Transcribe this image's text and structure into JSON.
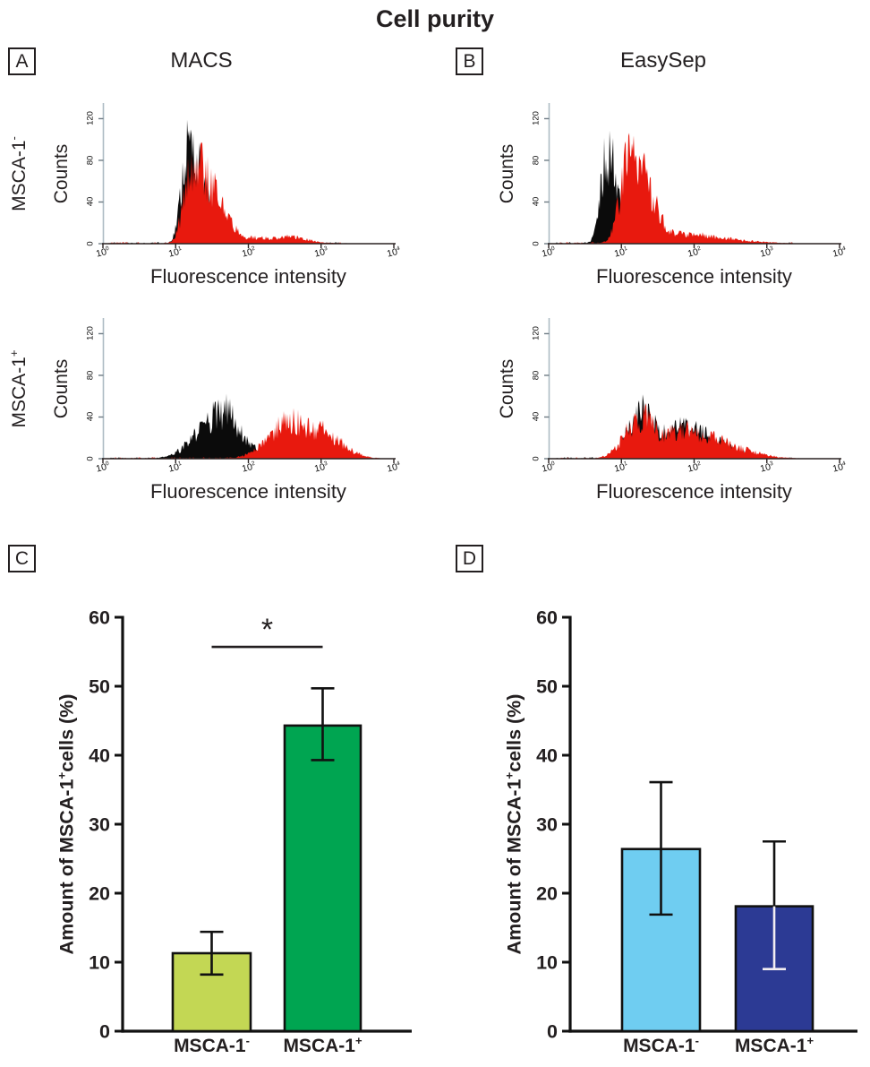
{
  "title": "Cell purity",
  "panels": {
    "A": {
      "letter": "A",
      "method": "MACS"
    },
    "B": {
      "letter": "B",
      "method": "EasySep"
    },
    "C": {
      "letter": "C"
    },
    "D": {
      "letter": "D"
    }
  },
  "row_labels": [
    {
      "text": "MSCA-1",
      "sign": "-"
    },
    {
      "text": "MSCA-1",
      "sign": "+"
    }
  ],
  "colors": {
    "hist_black": "#0b0b0b",
    "hist_red": "#e8190e",
    "hist_yaxis": "#aebcc4",
    "hist_xaxis": "#2a2222",
    "bar_yellow_green": "#c3d754",
    "bar_green": "#00a551",
    "bar_light_blue": "#6fcdf1",
    "bar_dark_blue": "#2c3a94",
    "axis_black": "#111111"
  },
  "chart_data": [
    {
      "type": "area",
      "panel": "A",
      "row": "MSCA-1-",
      "title": "MACS / MSCA-1- fraction",
      "xlabel": "Fluorescence intensity",
      "ylabel": "Counts",
      "x_scale": "log10",
      "xtick_exponents": [
        0,
        1,
        2,
        3,
        4
      ],
      "ylim": [
        0,
        135
      ],
      "yticks": [
        0,
        40,
        80,
        120
      ],
      "series": [
        {
          "name": "black",
          "components": [
            {
              "mu": 1.17,
              "sl": 0.09,
              "sr": 0.22,
              "h": 93
            }
          ]
        },
        {
          "name": "red",
          "components": [
            {
              "mu": 1.23,
              "sl": 0.11,
              "sr": 0.33,
              "h": 77
            },
            {
              "mu": 2.0,
              "sl": 0.45,
              "sr": 0.55,
              "h": 6
            },
            {
              "mu": 2.55,
              "sl": 0.15,
              "sr": 0.25,
              "h": 7
            }
          ]
        }
      ]
    },
    {
      "type": "area",
      "panel": "B",
      "row": "MSCA-1-",
      "title": "EasySep / MSCA-1- fraction",
      "xlabel": "Fluorescence intensity",
      "ylabel": "Counts",
      "x_scale": "log10",
      "xtick_exponents": [
        0,
        1,
        2,
        3,
        4
      ],
      "ylim": [
        0,
        135
      ],
      "yticks": [
        0,
        40,
        80,
        120
      ],
      "series": [
        {
          "name": "black",
          "components": [
            {
              "mu": 0.81,
              "sl": 0.09,
              "sr": 0.15,
              "h": 88
            }
          ]
        },
        {
          "name": "red",
          "components": [
            {
              "mu": 1.12,
              "sl": 0.13,
              "sr": 0.28,
              "h": 84
            },
            {
              "mu": 1.75,
              "sl": 0.3,
              "sr": 0.6,
              "h": 10
            },
            {
              "mu": 2.3,
              "sl": 0.3,
              "sr": 0.5,
              "h": 4
            }
          ]
        }
      ]
    },
    {
      "type": "area",
      "panel": "A",
      "row": "MSCA-1+",
      "title": "MACS / MSCA-1+ fraction",
      "xlabel": "Fluorescence intensity",
      "ylabel": "Counts",
      "x_scale": "log10",
      "xtick_exponents": [
        0,
        1,
        2,
        3,
        4
      ],
      "ylim": [
        0,
        135
      ],
      "yticks": [
        0,
        40,
        80,
        120
      ],
      "series": [
        {
          "name": "black",
          "components": [
            {
              "mu": 1.6,
              "sl": 0.3,
              "sr": 0.3,
              "h": 42
            },
            {
              "mu": 1.72,
              "sl": 0.14,
              "sr": 0.14,
              "h": 46
            }
          ]
        },
        {
          "name": "red",
          "components": [
            {
              "mu": 2.6,
              "sl": 0.3,
              "sr": 0.33,
              "h": 36
            },
            {
              "mu": 2.95,
              "sl": 0.15,
              "sr": 0.3,
              "h": 28
            }
          ]
        }
      ]
    },
    {
      "type": "area",
      "panel": "B",
      "row": "MSCA-1+",
      "title": "EasySep / MSCA-1+ fraction",
      "xlabel": "Fluorescence intensity",
      "ylabel": "Counts",
      "x_scale": "log10",
      "xtick_exponents": [
        0,
        1,
        2,
        3,
        4
      ],
      "ylim": [
        0,
        135
      ],
      "yticks": [
        0,
        40,
        80,
        120
      ],
      "series": [
        {
          "name": "black",
          "components": [
            {
              "mu": 1.25,
              "sl": 0.16,
              "sr": 0.25,
              "h": 46
            },
            {
              "mu": 1.8,
              "sl": 0.35,
              "sr": 0.5,
              "h": 30
            }
          ]
        },
        {
          "name": "red",
          "components": [
            {
              "mu": 1.28,
              "sl": 0.22,
              "sr": 0.25,
              "h": 40
            },
            {
              "mu": 1.85,
              "sl": 0.4,
              "sr": 0.55,
              "h": 27
            },
            {
              "mu": 2.35,
              "sl": 0.25,
              "sr": 0.4,
              "h": 13
            }
          ]
        }
      ]
    },
    {
      "type": "bar",
      "panel": "C",
      "title": "MACS cell purity",
      "ylabel_prefix": "Amount of MSCA-1",
      "ylabel_sup": "+",
      "ylabel_suffix": "cells (%)",
      "categories": [
        {
          "text": "MSCA-1",
          "sign": "-"
        },
        {
          "text": "MSCA-1",
          "sign": "+"
        }
      ],
      "values": [
        11.3,
        44.3
      ],
      "error_low": [
        8.2,
        39.3
      ],
      "error_high": [
        14.4,
        49.7
      ],
      "bar_colors": [
        "#c3d754",
        "#00a551"
      ],
      "ylim": [
        0,
        60
      ],
      "yticks": [
        0,
        10,
        20,
        30,
        40,
        50,
        60
      ],
      "significance": {
        "marker": "*",
        "level": 55.7,
        "between": [
          0,
          1
        ]
      }
    },
    {
      "type": "bar",
      "panel": "D",
      "title": "EasySep cell purity",
      "ylabel_prefix": "Amount of MSCA-1",
      "ylabel_sup": "+",
      "ylabel_suffix": "cells (%)",
      "categories": [
        {
          "text": "MSCA-1",
          "sign": "-"
        },
        {
          "text": "MSCA-1",
          "sign": "+"
        }
      ],
      "values": [
        26.4,
        18.1
      ],
      "error_low": [
        16.9,
        9.0
      ],
      "error_high": [
        36.1,
        27.5
      ],
      "bar_colors": [
        "#6fcdf1",
        "#2c3a94"
      ],
      "ylim": [
        0,
        60
      ],
      "yticks": [
        0,
        10,
        20,
        30,
        40,
        50,
        60
      ],
      "significance": null
    }
  ]
}
